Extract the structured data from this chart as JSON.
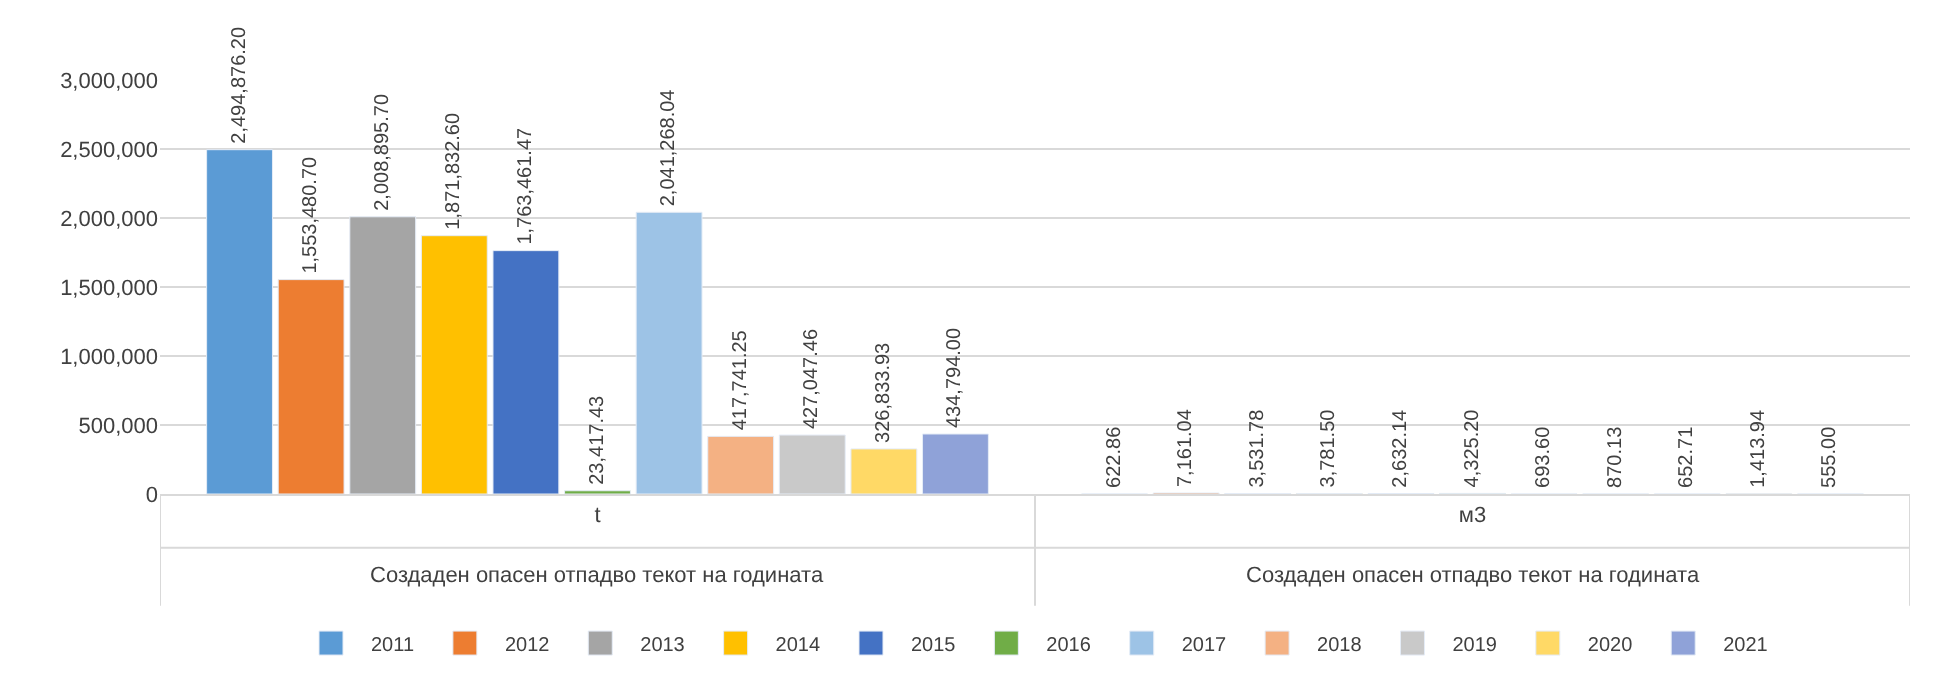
{
  "chart_data": {
    "type": "bar",
    "categories": [
      "t",
      "м3"
    ],
    "annotations": [
      "Создаден опасен отпадво текот на годината",
      "Создаден опасен отпадво текот на годината"
    ],
    "series": [
      {
        "name": "2011",
        "color": "#5b9bd5",
        "values": [
          2494876.2,
          622.86
        ],
        "value_labels": [
          "2,494,876.20",
          "622.86"
        ]
      },
      {
        "name": "2012",
        "color": "#ed7d31",
        "values": [
          1553480.7,
          7161.04
        ],
        "value_labels": [
          "1,553,480.70",
          "7,161.04"
        ]
      },
      {
        "name": "2013",
        "color": "#a5a5a5",
        "values": [
          2008895.7,
          3531.78
        ],
        "value_labels": [
          "2,008,895.70",
          "3,531.78"
        ]
      },
      {
        "name": "2014",
        "color": "#ffc000",
        "values": [
          1871832.6,
          3781.5
        ],
        "value_labels": [
          "1,871,832.60",
          "3,781.50"
        ]
      },
      {
        "name": "2015",
        "color": "#4472c4",
        "values": [
          1763461.47,
          2632.14
        ],
        "value_labels": [
          "1,763,461.47",
          "2,632.14"
        ]
      },
      {
        "name": "2016",
        "color": "#70ad47",
        "values": [
          23417.43,
          4325.2
        ],
        "value_labels": [
          "23,417.43",
          "4,325.20"
        ]
      },
      {
        "name": "2017",
        "color": "#9dc3e6",
        "values": [
          2041268.04,
          693.6
        ],
        "value_labels": [
          "2,041,268.04",
          "693.60"
        ]
      },
      {
        "name": "2018",
        "color": "#f4b183",
        "values": [
          417741.25,
          870.13
        ],
        "value_labels": [
          "417,741.25",
          "870.13"
        ]
      },
      {
        "name": "2019",
        "color": "#c9c9c9",
        "values": [
          427047.46,
          652.71
        ],
        "value_labels": [
          "427,047.46",
          "652.71"
        ]
      },
      {
        "name": "2020",
        "color": "#ffd966",
        "values": [
          326833.93,
          1413.94
        ],
        "value_labels": [
          "326,833.93",
          "1,413.94"
        ]
      },
      {
        "name": "2021",
        "color": "#8fa2d8",
        "values": [
          434794.0,
          555.0
        ],
        "value_labels": [
          "434,794.00",
          "555.00"
        ]
      }
    ],
    "ylim": [
      0,
      3000000
    ],
    "yticks": [
      {
        "value": 0,
        "label": "0"
      },
      {
        "value": 500000,
        "label": "500,000"
      },
      {
        "value": 1000000,
        "label": "1,000,000"
      },
      {
        "value": 1500000,
        "label": "1,500,000"
      },
      {
        "value": 2000000,
        "label": "2,000,000"
      },
      {
        "value": 2500000,
        "label": "2,500,000"
      },
      {
        "value": 3000000,
        "label": "3,000,000"
      }
    ],
    "grid": "y",
    "legend": "bottom"
  }
}
